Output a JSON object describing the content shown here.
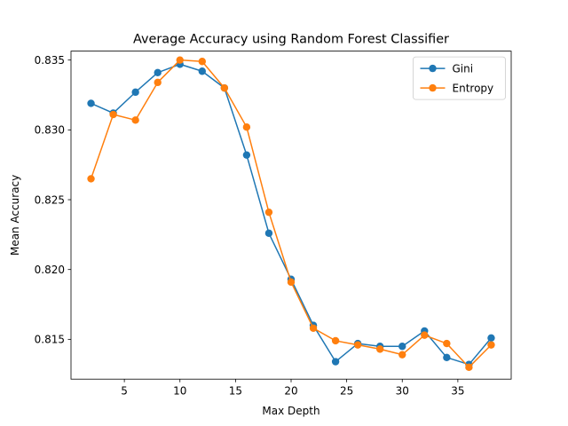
{
  "chart_data": {
    "type": "line",
    "title": "Average Accuracy using Random Forest Classifier",
    "xlabel": "Max Depth",
    "ylabel": "Mean Accuracy",
    "xlim": [
      0.2,
      39.8
    ],
    "ylim": [
      0.81215,
      0.83564
    ],
    "xticks": [
      5,
      10,
      15,
      20,
      25,
      30,
      35
    ],
    "xtick_labels": [
      "5",
      "10",
      "15",
      "20",
      "25",
      "30",
      "35"
    ],
    "yticks": [
      0.815,
      0.82,
      0.825,
      0.83,
      0.835
    ],
    "ytick_labels": [
      "0.815",
      "0.820",
      "0.825",
      "0.830",
      "0.835"
    ],
    "grid": false,
    "legend_position": "top-right",
    "x": [
      2,
      4,
      6,
      8,
      10,
      12,
      14,
      16,
      18,
      20,
      22,
      24,
      26,
      28,
      30,
      32,
      34,
      36,
      38
    ],
    "series": [
      {
        "name": "Gini",
        "color": "#1f77b4",
        "values": [
          0.8319,
          0.8312,
          0.8327,
          0.8341,
          0.8347,
          0.8342,
          0.833,
          0.8282,
          0.8226,
          0.8193,
          0.816,
          0.8134,
          0.8147,
          0.8145,
          0.8145,
          0.8156,
          0.8137,
          0.8132,
          0.8151
        ]
      },
      {
        "name": "Entropy",
        "color": "#ff7f0e",
        "values": [
          0.8265,
          0.8311,
          0.8307,
          0.8334,
          0.835,
          0.8349,
          0.833,
          0.8302,
          0.8241,
          0.8191,
          0.8158,
          0.8149,
          0.8146,
          0.8143,
          0.8139,
          0.8153,
          0.8147,
          0.813,
          0.8146
        ]
      }
    ]
  }
}
